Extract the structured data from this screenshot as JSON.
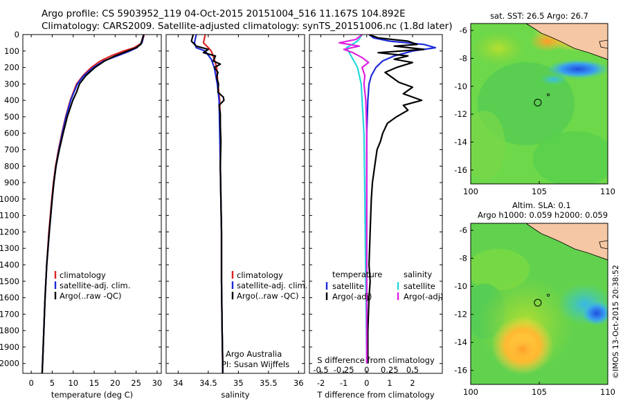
{
  "header": {
    "line1": "Argo profile: CS 5903952_119 04-Oct-2015 20151004_516 11.167S 104.892E",
    "line2": "Climatology: CARS2009. Satellite-adjusted climatology: synTS_20151006.nc (1.8d later)"
  },
  "colors": {
    "climatology": "#dd2222",
    "satellite": "#1c2ad8",
    "argo": "#000000",
    "salinity_satellite": "#22d8dc",
    "salinity_argo": "#e020e0"
  },
  "chart_data": [
    {
      "type": "line",
      "name": "temperature-profile",
      "xlabel": "temperature (deg C)",
      "ylabel": "",
      "xlim": [
        -2,
        31
      ],
      "ylim": [
        2060,
        0
      ],
      "xticks": [
        "0",
        "5",
        "10",
        "15",
        "20",
        "25",
        "30"
      ],
      "yticks": [
        "0",
        "100",
        "200",
        "300",
        "400",
        "500",
        "600",
        "700",
        "800",
        "900",
        "1000",
        "1100",
        "1200",
        "1300",
        "1400",
        "1500",
        "1600",
        "1700",
        "1800",
        "1900",
        "2000"
      ],
      "legend": [
        "climatology",
        "satellite-adj. clim.",
        "Argo(..raw -QC)"
      ],
      "series": [
        {
          "name": "climatology",
          "depth": [
            0,
            50,
            80,
            100,
            130,
            160,
            200,
            250,
            300,
            400,
            500,
            600,
            700,
            800,
            900,
            1000,
            1200,
            1400,
            1600,
            1800,
            2000,
            2060
          ],
          "values": [
            26.9,
            26.4,
            24.5,
            22.0,
            19.0,
            16.5,
            14.3,
            12.3,
            10.8,
            9.3,
            8.2,
            7.3,
            6.5,
            5.8,
            5.3,
            4.9,
            4.2,
            3.7,
            3.3,
            3.0,
            2.7,
            2.6
          ]
        },
        {
          "name": "satellite-adj. clim.",
          "depth": [
            0,
            50,
            80,
            100,
            130,
            160,
            200,
            250,
            300,
            400,
            500,
            600,
            700,
            800,
            900,
            1000,
            1200,
            1400,
            1600,
            1800,
            2000,
            2060
          ],
          "values": [
            26.8,
            26.4,
            25.2,
            23.5,
            20.5,
            17.3,
            14.8,
            12.5,
            11.0,
            9.4,
            8.3,
            7.4,
            6.6,
            5.9,
            5.4,
            5.0,
            4.3,
            3.7,
            3.3,
            3.0,
            2.7,
            2.6
          ]
        },
        {
          "name": "Argo(..raw -QC)",
          "depth": [
            0,
            60,
            80,
            100,
            130,
            160,
            200,
            250,
            300,
            350,
            400,
            500,
            600,
            700,
            800,
            900,
            1000,
            1200,
            1400,
            1600,
            1800,
            2000,
            2060
          ],
          "values": [
            26.8,
            26.1,
            25.0,
            23.0,
            20.0,
            17.5,
            15.2,
            13.0,
            11.5,
            10.8,
            9.9,
            8.6,
            7.6,
            6.7,
            5.9,
            5.4,
            5.0,
            4.3,
            3.7,
            3.3,
            3.0,
            2.7,
            2.6
          ]
        }
      ]
    },
    {
      "type": "line",
      "name": "salinity-profile",
      "xlabel": "salinity",
      "xlim": [
        33.8,
        36.1
      ],
      "ylim": [
        2060,
        0
      ],
      "xticks": [
        "34",
        "34.5",
        "35",
        "35.5",
        "36"
      ],
      "legend": [
        "climatology",
        "satellite-adj. clim.",
        "Argo(..raw -QC)"
      ],
      "annotation": [
        "Argo Australia",
        "PI: Susan Wijffels"
      ],
      "series": [
        {
          "name": "climatology",
          "depth": [
            0,
            50,
            80,
            100,
            150,
            200,
            300,
            400,
            600,
            800,
            1000,
            1200,
            1500,
            1800,
            2000,
            2060
          ],
          "values": [
            34.45,
            34.42,
            34.5,
            34.55,
            34.6,
            34.64,
            34.66,
            34.69,
            34.7,
            34.7,
            34.71,
            34.72,
            34.72,
            34.73,
            34.74,
            34.74
          ]
        },
        {
          "name": "satellite-adj. clim.",
          "depth": [
            0,
            50,
            80,
            100,
            150,
            200,
            300,
            400,
            600,
            800,
            1000,
            1200,
            1500,
            1800,
            2000,
            2060
          ],
          "values": [
            34.3,
            34.27,
            34.3,
            34.45,
            34.55,
            34.6,
            34.65,
            34.68,
            34.69,
            34.7,
            34.71,
            34.72,
            34.72,
            34.73,
            34.74,
            34.74
          ]
        },
        {
          "name": "Argo(..raw -QC)",
          "depth": [
            0,
            40,
            70,
            90,
            110,
            130,
            160,
            180,
            200,
            230,
            260,
            300,
            350,
            380,
            400,
            430,
            480,
            550,
            650,
            800,
            1000,
            1200,
            1500,
            1800,
            2000,
            2060
          ],
          "values": [
            34.25,
            34.22,
            34.3,
            34.5,
            34.42,
            34.62,
            34.58,
            34.7,
            34.6,
            34.66,
            34.64,
            34.67,
            34.66,
            34.75,
            34.76,
            34.68,
            34.7,
            34.7,
            34.71,
            34.7,
            34.71,
            34.72,
            34.72,
            34.73,
            34.74,
            34.74
          ]
        }
      ]
    },
    {
      "type": "line",
      "name": "difference-profile",
      "xlabel": "T difference from climatology",
      "xlabel_top": "S difference from climatology",
      "xlim": [
        -2.5,
        3.3
      ],
      "ylim": [
        2060,
        0
      ],
      "xticks": [
        "-2",
        "-1",
        "0",
        "1",
        "2"
      ],
      "xticks_top": [
        "-0.5",
        "-0.25",
        "0",
        "0.25",
        "0.5"
      ],
      "legend_temperature": [
        "satellite",
        "Argo(-adj)"
      ],
      "legend_salinity": [
        "satellite",
        "Argo(-adj)"
      ],
      "legend_heading_temperature": "temperature",
      "legend_heading_salinity": "salinity",
      "series": [
        {
          "name": "temperature satellite",
          "depth": [
            0,
            20,
            40,
            60,
            80,
            100,
            130,
            160,
            200,
            250,
            300,
            400,
            600,
            800,
            1000,
            1500,
            2000
          ],
          "values": [
            0.1,
            0.3,
            1.0,
            2.5,
            3.0,
            2.0,
            1.2,
            0.7,
            0.4,
            0.2,
            0.1,
            0.05,
            0.0,
            0.0,
            0.0,
            0.0,
            0.0
          ]
        },
        {
          "name": "temperature Argo(-adj)",
          "depth": [
            0,
            20,
            40,
            60,
            70,
            90,
            110,
            130,
            150,
            170,
            200,
            230,
            260,
            290,
            320,
            360,
            400,
            430,
            460,
            500,
            540,
            600,
            650,
            700,
            800,
            900,
            1000,
            1200,
            1400,
            1500,
            1600,
            1800,
            2000
          ],
          "values": [
            0.1,
            0.5,
            1.8,
            2.2,
            1.2,
            2.5,
            0.5,
            1.8,
            1.2,
            2.0,
            1.3,
            0.8,
            1.1,
            1.4,
            2.0,
            1.6,
            2.4,
            1.6,
            1.8,
            1.3,
            0.9,
            0.7,
            0.6,
            0.45,
            0.35,
            0.25,
            0.2,
            0.15,
            0.1,
            0.15,
            0.1,
            0.05,
            0.05
          ]
        },
        {
          "name": "salinity satellite",
          "depth": [
            0,
            40,
            80,
            120,
            200,
            300,
            600,
            1000,
            1500,
            2000
          ],
          "values": [
            -0.05,
            -0.1,
            -0.22,
            -0.18,
            -0.1,
            -0.06,
            -0.03,
            -0.02,
            -0.01,
            0.0
          ]
        },
        {
          "name": "salinity Argo(-adj)",
          "depth": [
            0,
            30,
            50,
            70,
            90,
            110,
            140,
            170,
            200,
            250,
            300,
            400,
            600,
            1000,
            2000
          ],
          "values": [
            -0.05,
            -0.12,
            -0.3,
            -0.08,
            -0.25,
            -0.15,
            -0.05,
            0.02,
            -0.05,
            -0.02,
            -0.03,
            -0.01,
            0.0,
            0.0,
            0.0
          ]
        }
      ]
    },
    {
      "type": "heatmap",
      "name": "sst-map",
      "title": "sat. SST: 26.5  Argo: 26.7",
      "xlim": [
        100,
        110
      ],
      "ylim": [
        -17,
        -5.5
      ],
      "xticks": [
        "100",
        "105",
        "110"
      ],
      "yticks": [
        "-6",
        "-8",
        "-10",
        "-12",
        "-14",
        "-16"
      ],
      "marker": {
        "lon": 104.892,
        "lat": -11.167
      }
    },
    {
      "type": "heatmap",
      "name": "sla-map",
      "title": "Altim. SLA: 0.1",
      "subtitle": "Argo h1000: 0.059 h2000: 0.059",
      "xlim": [
        100,
        110
      ],
      "ylim": [
        -17,
        -5.5
      ],
      "xticks": [
        "100",
        "105",
        "110"
      ],
      "yticks": [
        "-6",
        "-8",
        "-10",
        "-12",
        "-14",
        "-16"
      ],
      "marker": {
        "lon": 104.892,
        "lat": -11.167
      }
    }
  ],
  "credit": "©IMOS 13-Oct-2015 20:38:52"
}
